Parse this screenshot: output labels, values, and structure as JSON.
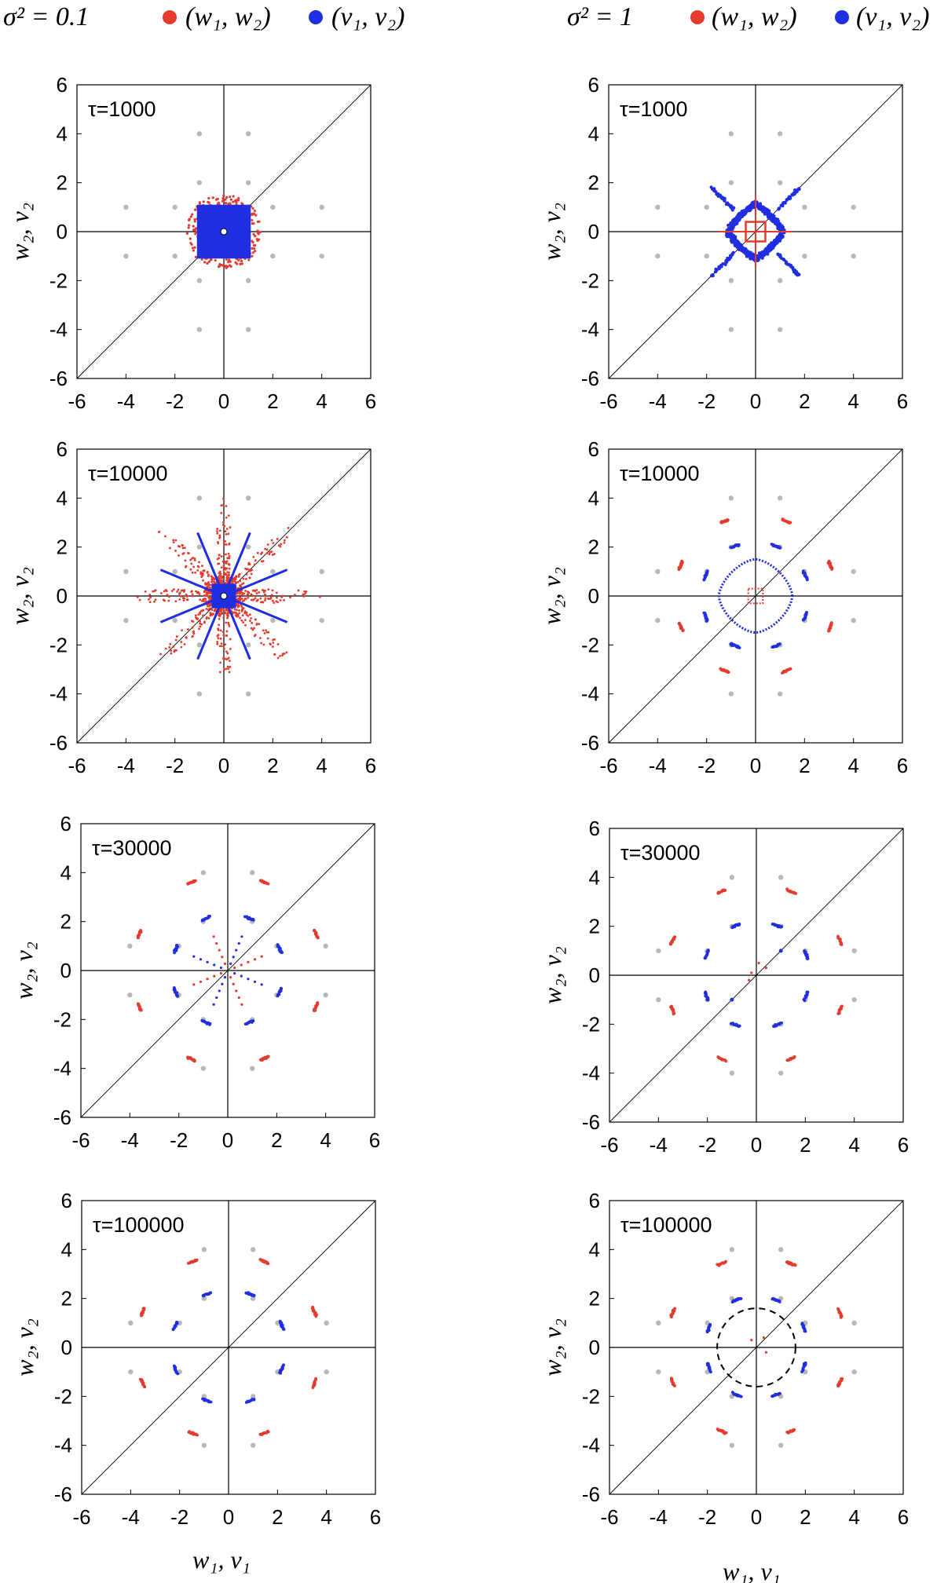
{
  "colors": {
    "w": "#e53b2f",
    "v": "#1f2fe0",
    "ref": "#b8b8b8",
    "axis": "#000000"
  },
  "legend": {
    "left": {
      "sigma_label": "σ² = 0.1",
      "w_label": "(w₁, w₂)",
      "v_label": "(v₁, v₂)"
    },
    "right": {
      "sigma_label": "σ² = 1",
      "w_label": "(w₁, w₂)",
      "v_label": "(v₁, v₂)"
    }
  },
  "axis_labels": {
    "x": "w₁, v₁",
    "y": "w₂, v₂"
  },
  "chart_data": [
    {
      "type": "scatter",
      "id": "s01-t1000",
      "tau_label": "τ=1000",
      "xlim": [
        -6,
        6
      ],
      "ylim": [
        -6,
        6
      ],
      "ticks": [
        "-6",
        "-4",
        "-2",
        "0",
        "2",
        "4",
        "6"
      ],
      "series": [
        {
          "name": "(w1,w2)",
          "shape": "star-blob",
          "halfwidth": 1.5
        },
        {
          "name": "(v1,v2)",
          "shape": "filled-square",
          "halfwidth": 1.1
        }
      ]
    },
    {
      "type": "scatter",
      "id": "s1-t1000",
      "tau_label": "τ=1000",
      "xlim": [
        -6,
        6
      ],
      "ylim": [
        -6,
        6
      ],
      "ticks": [
        "-6",
        "-4",
        "-2",
        "0",
        "2",
        "4",
        "6"
      ],
      "series": [
        {
          "name": "(w1,w2)",
          "shape": "cross-square",
          "halfwidth": 0.4
        },
        {
          "name": "(v1,v2)",
          "shape": "diamond-ring",
          "radius": 1.6
        }
      ]
    },
    {
      "type": "scatter",
      "id": "s01-t10000",
      "tau_label": "τ=10000",
      "xlim": [
        -6,
        6
      ],
      "ylim": [
        -6,
        6
      ],
      "ticks": [
        "-6",
        "-4",
        "-2",
        "0",
        "2",
        "4",
        "6"
      ],
      "series": [
        {
          "name": "(w1,w2)",
          "shape": "spiky-star",
          "reach": 4.0
        },
        {
          "name": "(v1,v2)",
          "shape": "spokes",
          "reach": 2.8
        }
      ]
    },
    {
      "type": "scatter",
      "id": "s1-t10000",
      "tau_label": "τ=10000",
      "xlim": [
        -6,
        6
      ],
      "ylim": [
        -6,
        6
      ],
      "ticks": [
        "-6",
        "-4",
        "-2",
        "0",
        "2",
        "4",
        "6"
      ],
      "series": [
        {
          "name": "(w1,w2)",
          "shape": "clusters",
          "radius": 3.3
        },
        {
          "name": "(v1,v2)",
          "shape": "diamond-outline",
          "radius": 1.5
        }
      ]
    },
    {
      "type": "scatter",
      "id": "s01-t30000",
      "tau_label": "τ=30000",
      "xlim": [
        -6,
        6
      ],
      "ylim": [
        -6,
        6
      ],
      "ticks": [
        "-6",
        "-4",
        "-2",
        "0",
        "2",
        "4",
        "6"
      ],
      "series": [
        {
          "name": "(w1,w2)",
          "shape": "clusters",
          "radius": 3.9
        },
        {
          "name": "(v1,v2)",
          "shape": "clusters",
          "radius": 2.3
        }
      ]
    },
    {
      "type": "scatter",
      "id": "s1-t30000",
      "tau_label": "τ=30000",
      "xlim": [
        -6,
        6
      ],
      "ylim": [
        -6,
        6
      ],
      "ticks": [
        "-6",
        "-4",
        "-2",
        "0",
        "2",
        "4",
        "6"
      ],
      "series": [
        {
          "name": "(w1,w2)",
          "shape": "clusters",
          "radius": 3.7
        },
        {
          "name": "(v1,v2)",
          "shape": "clusters",
          "radius": 2.2
        }
      ]
    },
    {
      "type": "scatter",
      "id": "s01-t100000",
      "tau_label": "τ=100000",
      "xlim": [
        -6,
        6
      ],
      "ylim": [
        -6,
        6
      ],
      "ticks": [
        "-6",
        "-4",
        "-2",
        "0",
        "2",
        "4",
        "6"
      ],
      "series": [
        {
          "name": "(w1,w2)",
          "shape": "clusters",
          "radius": 3.8
        },
        {
          "name": "(v1,v2)",
          "shape": "clusters",
          "radius": 2.35
        }
      ]
    },
    {
      "type": "scatter",
      "id": "s1-t100000",
      "tau_label": "τ=100000",
      "xlim": [
        -6,
        6
      ],
      "ylim": [
        -6,
        6
      ],
      "ticks": [
        "-6",
        "-4",
        "-2",
        "0",
        "2",
        "4",
        "6"
      ],
      "dashed_circle_radius": 1.6,
      "series": [
        {
          "name": "(w1,w2)",
          "shape": "clusters",
          "radius": 3.7
        },
        {
          "name": "(v1,v2)",
          "shape": "clusters",
          "radius": 2.1
        }
      ]
    }
  ],
  "reference_points": [
    [
      1,
      4
    ],
    [
      4,
      1
    ],
    [
      -1,
      4
    ],
    [
      -4,
      1
    ],
    [
      1,
      -4
    ],
    [
      4,
      -1
    ],
    [
      -1,
      -4
    ],
    [
      -4,
      -1
    ],
    [
      1,
      2
    ],
    [
      2,
      1
    ],
    [
      -1,
      2
    ],
    [
      -2,
      1
    ],
    [
      1,
      -2
    ],
    [
      2,
      -1
    ],
    [
      -1,
      -2
    ],
    [
      -2,
      -1
    ]
  ]
}
